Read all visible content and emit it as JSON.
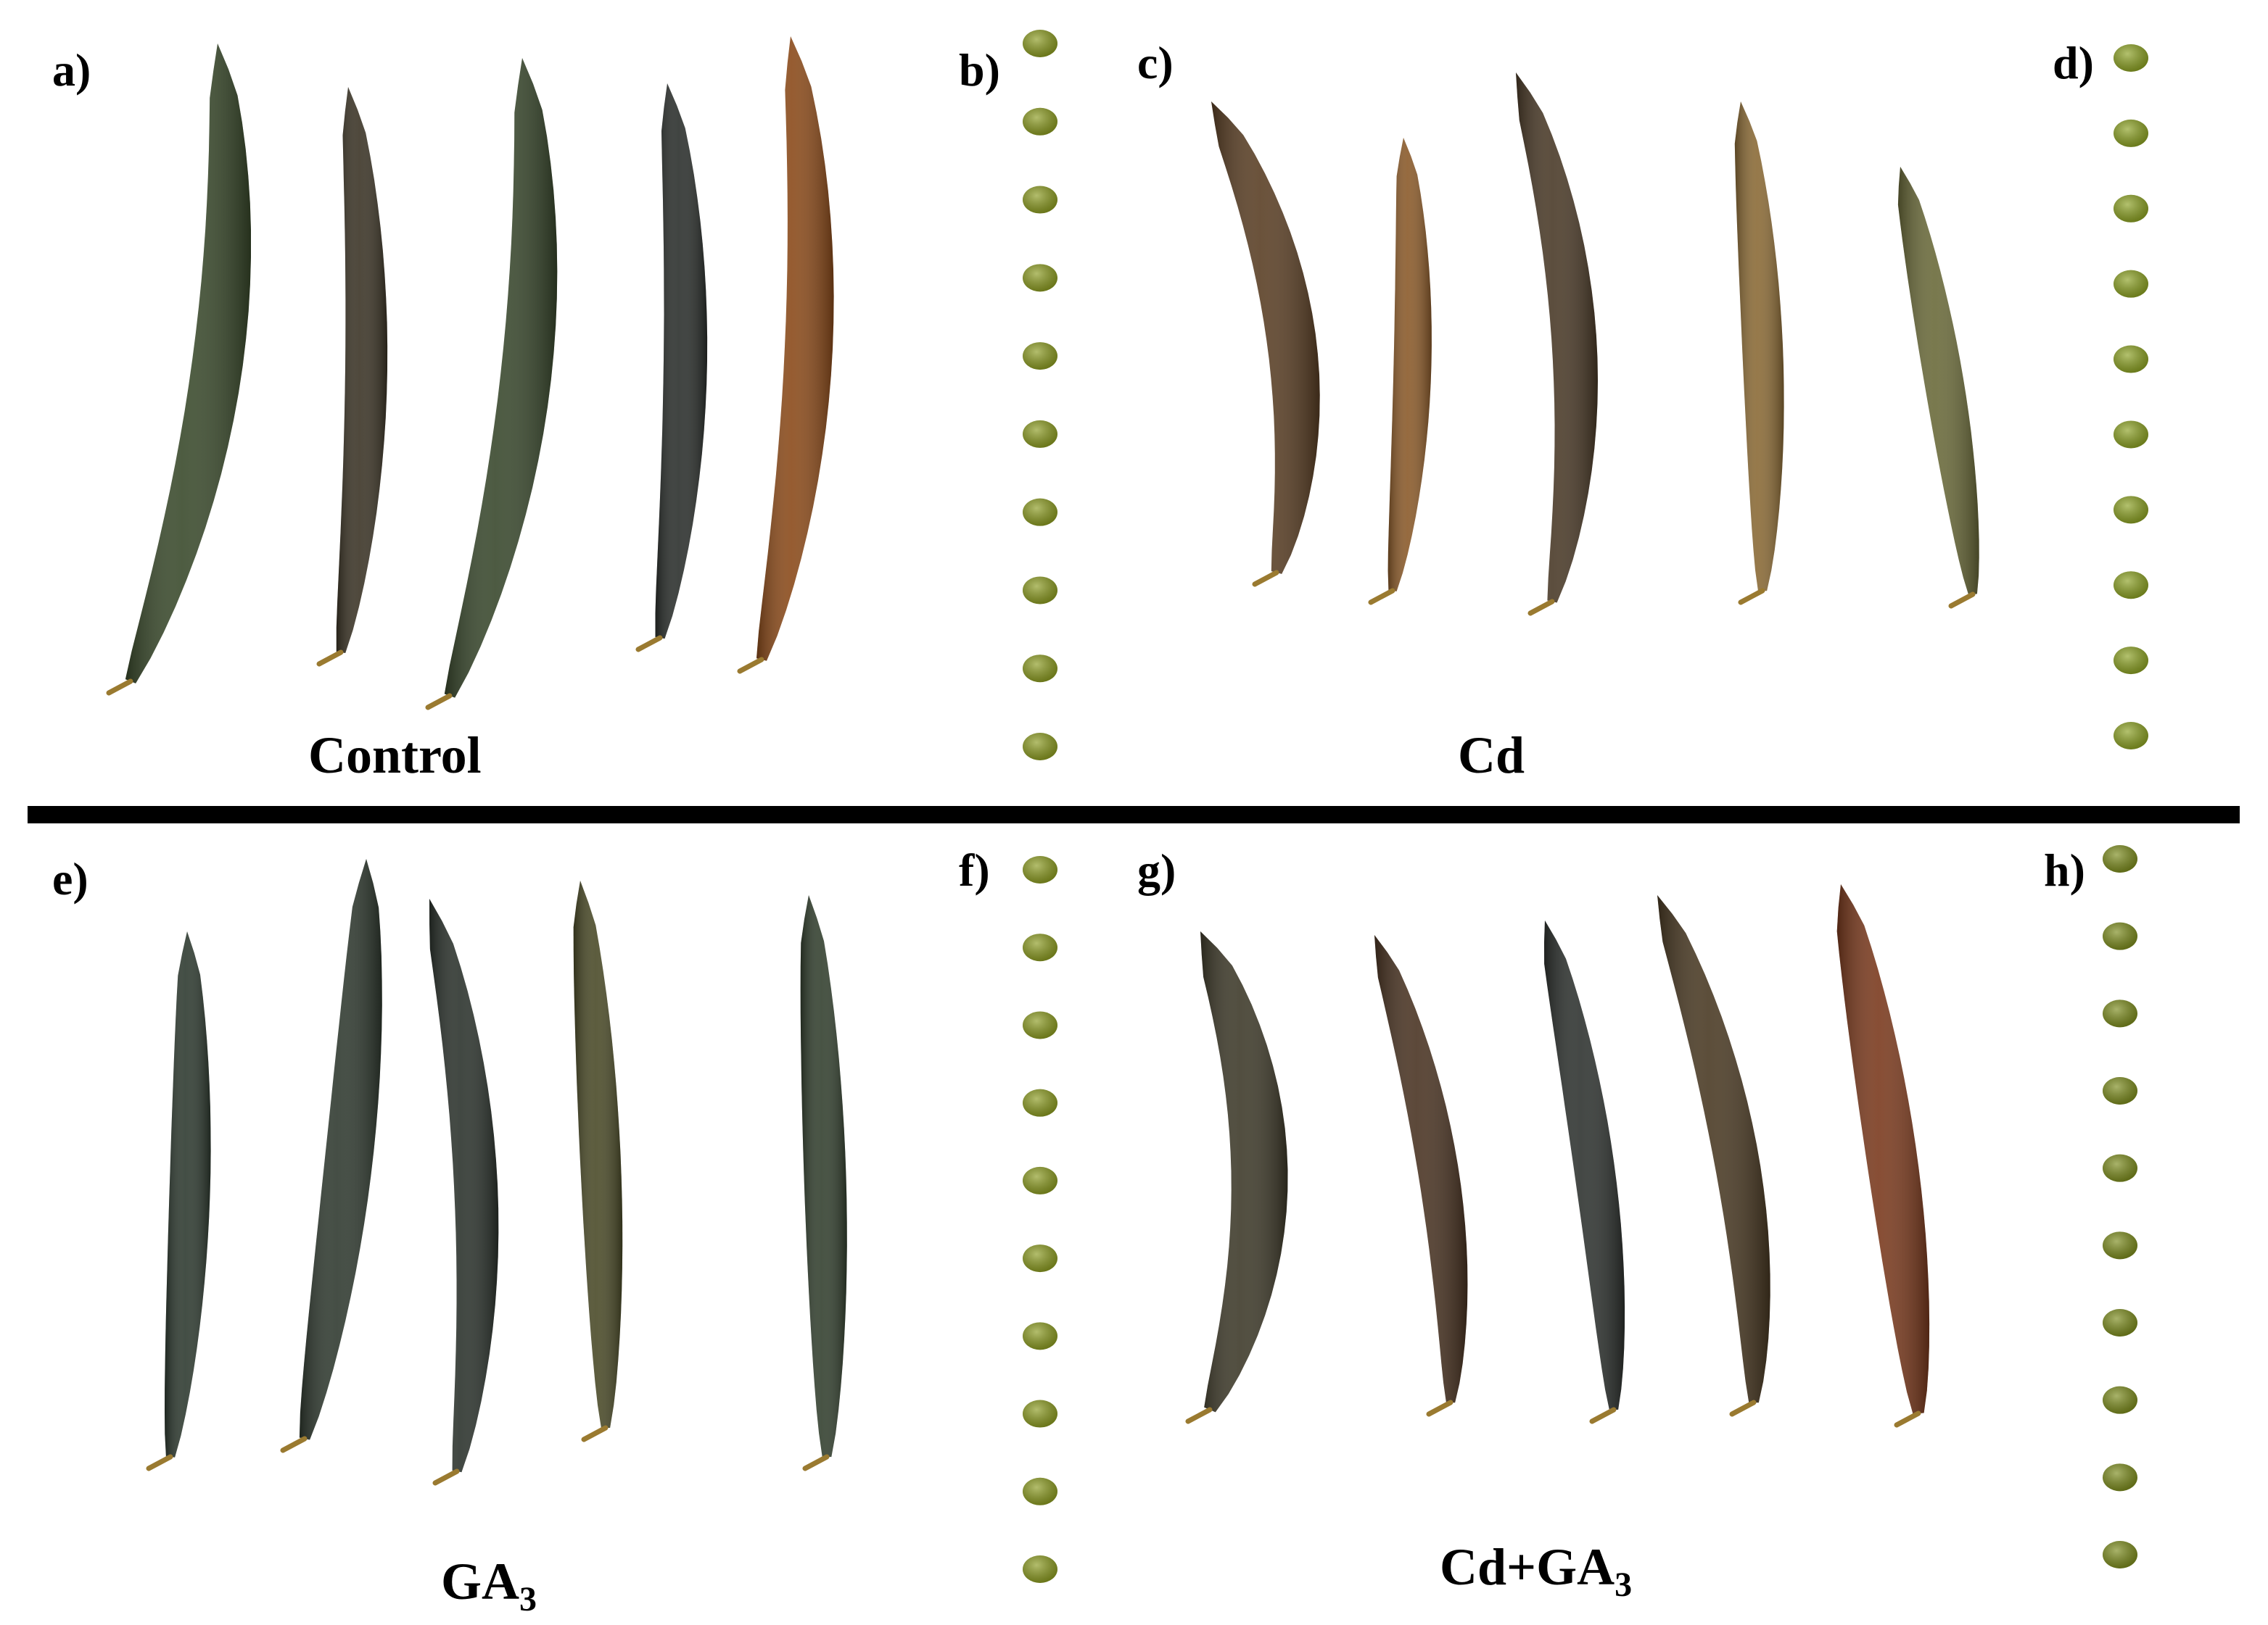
{
  "figure": {
    "panels": [
      {
        "id": "a",
        "label": "a)",
        "content": "pods",
        "pod_count": 5,
        "pod_colors": [
          "#3a4a2c",
          "#3b3426",
          "#39482d",
          "#2b2f2c",
          "#8a4a1a"
        ]
      },
      {
        "id": "b",
        "label": "b)",
        "content": "seeds",
        "seed_count": 10,
        "seed_color": "#8a9a1e"
      },
      {
        "id": "c",
        "label": "c)",
        "content": "pods",
        "pod_count": 5,
        "pod_colors": [
          "#5a3f25",
          "#8a5a2a",
          "#4a3a28",
          "#8a6a36",
          "#6a6a3a"
        ]
      },
      {
        "id": "d",
        "label": "d)",
        "content": "seeds",
        "seed_count": 10,
        "seed_color": "#8aa020"
      },
      {
        "id": "e",
        "label": "e)",
        "content": "pods",
        "pod_count": 5,
        "pod_colors": [
          "#2e3a30",
          "#303a30",
          "#2c332d",
          "#4a4a28",
          "#33402f"
        ]
      },
      {
        "id": "f",
        "label": "f)",
        "content": "seeds",
        "seed_count": 10,
        "seed_color": "#8a9a1e"
      },
      {
        "id": "g",
        "label": "g)",
        "content": "pods",
        "pod_count": 5,
        "pod_colors": [
          "#3e3a2a",
          "#4a3423",
          "#2f3330",
          "#4a3a24",
          "#7a3a1e"
        ]
      },
      {
        "id": "h",
        "label": "h)",
        "content": "seeds",
        "seed_count": 10,
        "seed_color": "#7a8a1a"
      }
    ],
    "captions": {
      "control": "Control",
      "cd": "Cd",
      "ga3_base": "GA",
      "ga3_sub": "3",
      "cdga3_base": "Cd+GA",
      "cdga3_sub": "3"
    },
    "divider_color": "#000000"
  }
}
